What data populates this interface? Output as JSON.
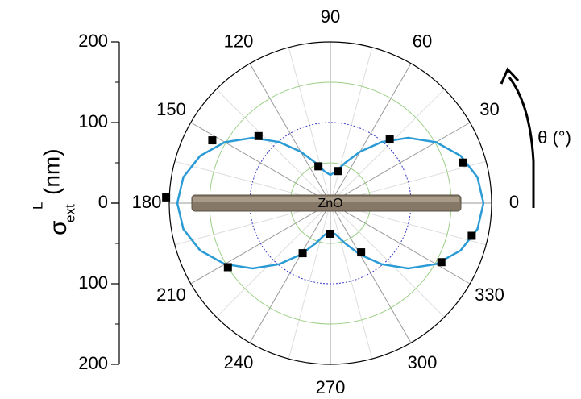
{
  "chart_data": {
    "type": "polar",
    "y_label": {
      "symbol": "σ",
      "superscript": "L",
      "subscript": "ext",
      "unit": "(nm)"
    },
    "annotation": "θ (°)",
    "rod_label": "ZnO",
    "rlim": [
      0,
      200
    ],
    "rticks": [
      0,
      100,
      200
    ],
    "thetaticks": [
      0,
      30,
      60,
      90,
      120,
      150,
      180,
      210,
      240,
      270,
      300,
      330
    ],
    "circles": [
      {
        "r": 50,
        "color": "#9ccf86"
      },
      {
        "r": 100,
        "color": "#3535c8",
        "dash": true
      },
      {
        "r": 150,
        "color": "#9ccf86"
      }
    ],
    "series": [
      {
        "kind": "line",
        "color": "#2b9bd6",
        "theta": [
          0,
          10,
          20,
          30,
          40,
          50,
          60,
          70,
          80,
          90,
          100,
          110,
          120,
          130,
          140,
          150,
          160,
          170,
          180,
          190,
          200,
          210,
          220,
          230,
          240,
          250,
          260,
          270,
          280,
          290,
          300,
          310,
          320,
          330,
          340,
          350,
          360
        ],
        "r": [
          190,
          185.3,
          171.9,
          151.3,
          126,
          99,
          73.8,
          53.1,
          39.7,
          35,
          39.7,
          53.1,
          73.8,
          99,
          126,
          151.3,
          171.9,
          185.3,
          190,
          185.3,
          171.9,
          151.3,
          126,
          99,
          73.8,
          53.1,
          39.7,
          35,
          39.7,
          53.1,
          73.8,
          99,
          126,
          151.3,
          171.9,
          185.3,
          190
        ]
      },
      {
        "kind": "scatter",
        "color": "#000000",
        "theta": [
          178,
          152,
          137,
          108,
          76,
          47,
          17,
          347,
          332,
          302,
          270,
          241,
          212
        ],
        "r": [
          204,
          166,
          122,
          48,
          41,
          108,
          172,
          180,
          156,
          72,
          38,
          71,
          150
        ]
      }
    ]
  }
}
